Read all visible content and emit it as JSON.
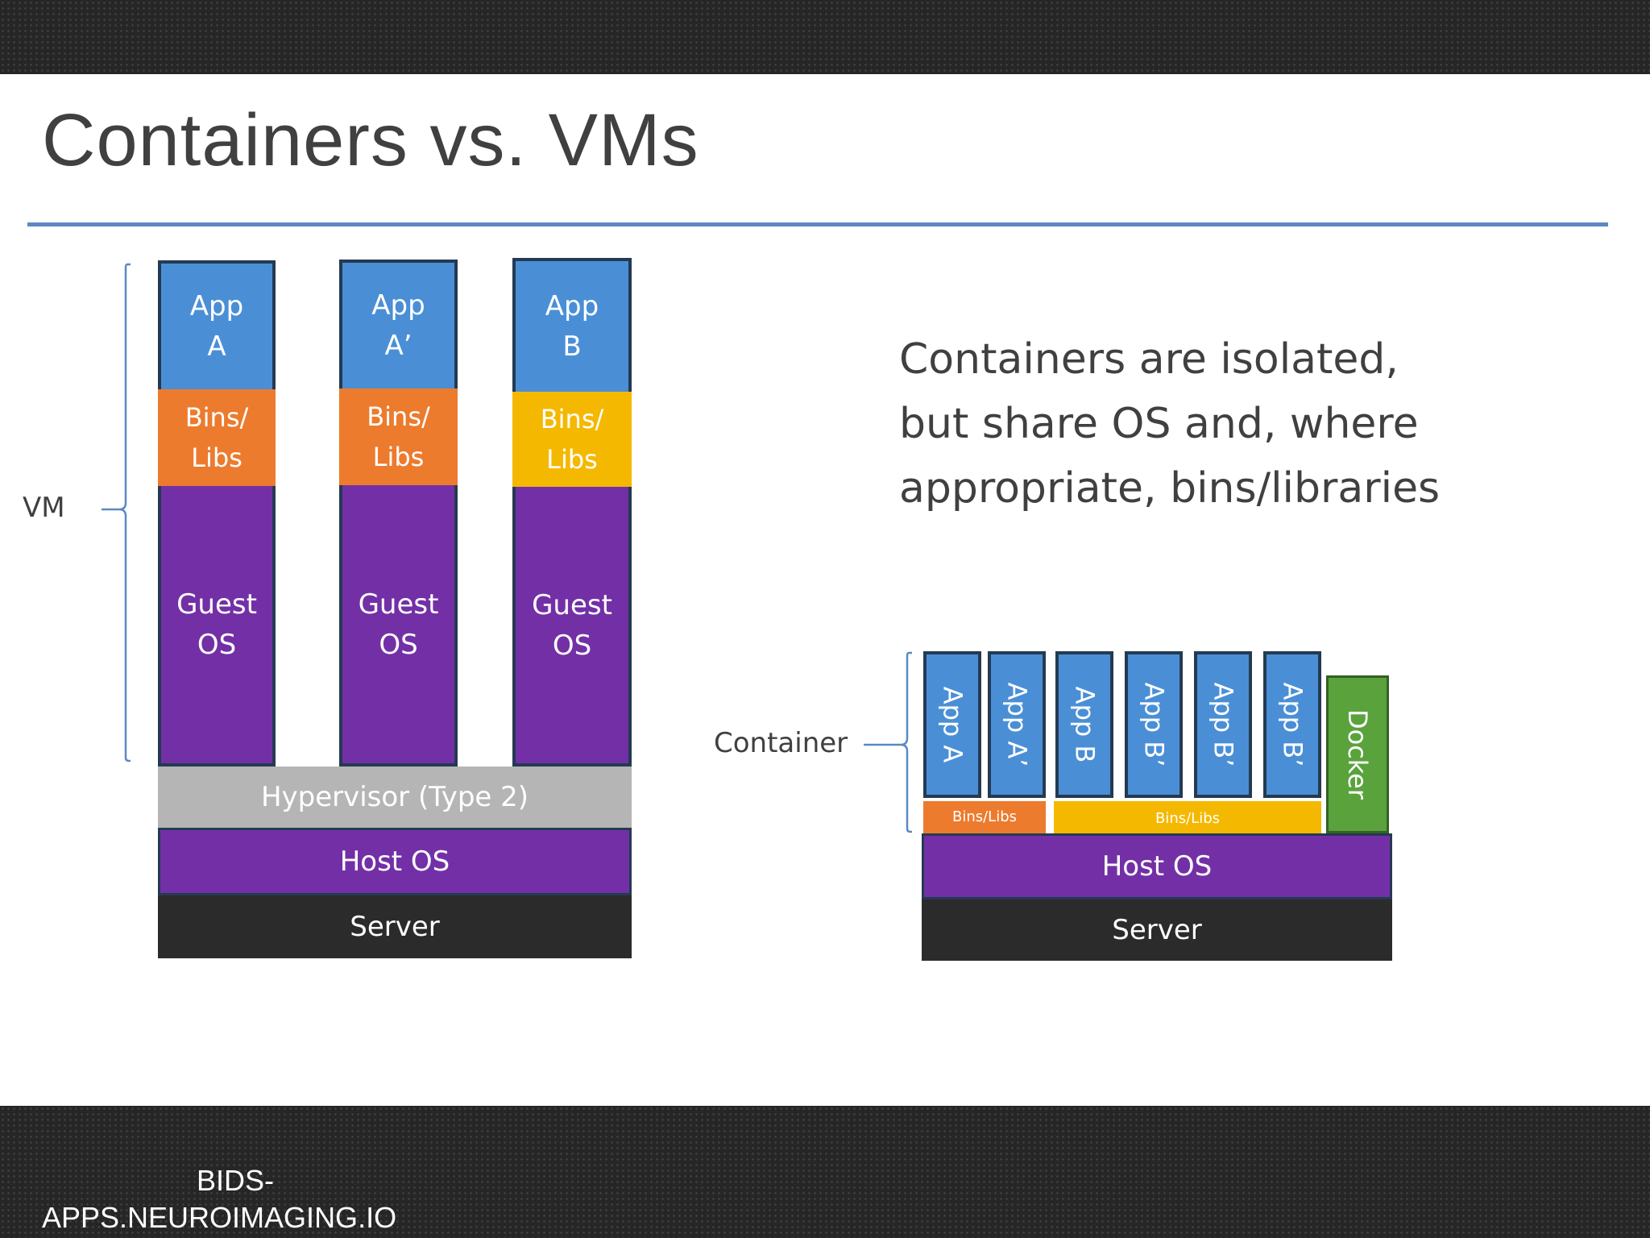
{
  "slide": {
    "title": "Containers vs. VMs",
    "description_lines": [
      "Containers are isolated,",
      "but share OS and, where",
      "appropriate, bins/libraries"
    ],
    "footer_lines": [
      "BIDS-",
      "APPS.NEUROIMAGING.IO"
    ]
  },
  "vm_diagram": {
    "bracket_label": "VM",
    "stacks": [
      {
        "app": [
          "App",
          "A"
        ],
        "bins": [
          "Bins/",
          "Libs"
        ],
        "guest": [
          "Guest",
          "OS"
        ]
      },
      {
        "app": [
          "App",
          "A’"
        ],
        "bins": [
          "Bins/",
          "Libs"
        ],
        "guest": [
          "Guest",
          "OS"
        ]
      },
      {
        "app": [
          "App",
          "B"
        ],
        "bins": [
          "Bins/",
          "Libs"
        ],
        "guest": [
          "Guest",
          "OS"
        ]
      }
    ],
    "hypervisor": "Hypervisor (Type 2)",
    "host_os": "Host OS",
    "server": "Server"
  },
  "container_diagram": {
    "bracket_label": "Container",
    "apps": [
      "App A",
      "App A’",
      "App B",
      "App B’",
      "App B’",
      "App B’"
    ],
    "bins_left": "Bins/Libs",
    "bins_right": "Bins/Libs",
    "docker": "Docker",
    "host_os": "Host OS",
    "server": "Server"
  },
  "colors": {
    "app": "#4a8fd6",
    "bins_orange": "#ec7b2e",
    "bins_yellow": "#f5b800",
    "guest_os": "#7330a6",
    "hypervisor": "#b5b5b5",
    "host_os": "#7330a6",
    "server": "#2b2b2b",
    "docker": "#5aa33c",
    "title_rule": "#5b89c2"
  }
}
